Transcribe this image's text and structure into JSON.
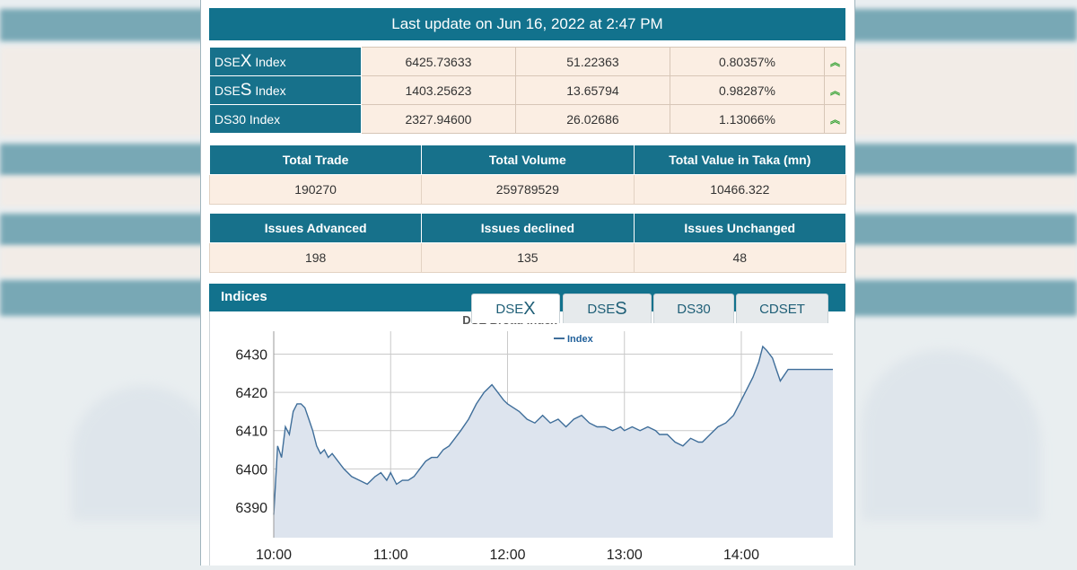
{
  "update": {
    "text": "Last update on Jun 16, 2022 at 2:47 PM"
  },
  "indices": [
    {
      "prefix": "DSE",
      "letter": "X",
      "suffix": " Index",
      "value": "6425.73633",
      "change": "51.22363",
      "percent": "0.80357%",
      "trend_icon": "double-chevron-up-icon"
    },
    {
      "prefix": "DSE",
      "letter": "S",
      "suffix": " Index",
      "value": "1403.25623",
      "change": "13.65794",
      "percent": "0.98287%",
      "trend_icon": "double-chevron-up-icon"
    },
    {
      "prefix": "DS30",
      "letter": "",
      "suffix": " Index",
      "value": "2327.94600",
      "change": "26.02686",
      "percent": "1.13066%",
      "trend_icon": "double-chevron-up-icon"
    }
  ],
  "totals": {
    "headers": [
      "Total Trade",
      "Total Volume",
      "Total Value in Taka (mn)"
    ],
    "values": [
      "190270",
      "259789529",
      "10466.322"
    ]
  },
  "issues": {
    "headers": [
      "Issues Advanced",
      "Issues declined",
      "Issues Unchanged"
    ],
    "values": [
      "198",
      "135",
      "48"
    ]
  },
  "indices_section": {
    "title": "Indices",
    "tabs": [
      {
        "prefix": "DSE",
        "letter": "X"
      },
      {
        "prefix": "DSE",
        "letter": "S"
      },
      {
        "prefix": "DS30",
        "letter": ""
      },
      {
        "prefix": "CDSET",
        "letter": ""
      }
    ],
    "active_tab": 0
  },
  "colors": {
    "header": "#12728d",
    "cell_bg": "#fbeee3",
    "line": "#3f6e9a",
    "area": "#dde4ee",
    "arrow": "#2e9f2e"
  },
  "chart_data": {
    "type": "area",
    "title": "DSE Broad Index",
    "legend": [
      "Index"
    ],
    "legend_position": "top-center",
    "xlabel": "",
    "ylabel": "",
    "x_ticks": [
      "10:00",
      "11:00",
      "12:00",
      "13:00",
      "14:00"
    ],
    "y_ticks": [
      6390,
      6400,
      6410,
      6420,
      6430
    ],
    "ylim": [
      6382,
      6436
    ],
    "grid": true,
    "series": [
      {
        "name": "Index",
        "x": [
          "10:00",
          "10:02",
          "10:04",
          "10:06",
          "10:08",
          "10:10",
          "10:12",
          "10:14",
          "10:16",
          "10:18",
          "10:20",
          "10:22",
          "10:24",
          "10:26",
          "10:28",
          "10:30",
          "10:33",
          "10:36",
          "10:40",
          "10:44",
          "10:48",
          "10:52",
          "10:55",
          "10:58",
          "11:00",
          "11:03",
          "11:06",
          "11:09",
          "11:12",
          "11:15",
          "11:18",
          "11:21",
          "11:24",
          "11:27",
          "11:30",
          "11:33",
          "11:36",
          "11:40",
          "11:44",
          "11:48",
          "11:52",
          "11:55",
          "11:58",
          "12:00",
          "12:03",
          "12:06",
          "12:10",
          "12:14",
          "12:18",
          "12:22",
          "12:26",
          "12:30",
          "12:34",
          "12:38",
          "12:42",
          "12:46",
          "12:50",
          "12:54",
          "12:58",
          "13:00",
          "13:04",
          "13:08",
          "13:12",
          "13:16",
          "13:18",
          "13:22",
          "13:24",
          "13:26",
          "13:30",
          "13:34",
          "13:38",
          "13:40",
          "13:44",
          "13:48",
          "13:52",
          "13:56",
          "14:00",
          "14:03",
          "14:06",
          "14:09",
          "14:11",
          "14:13",
          "14:16",
          "14:18",
          "14:20",
          "14:24",
          "14:28",
          "14:32",
          "14:36",
          "14:40",
          "14:44",
          "14:47"
        ],
        "values": [
          6388,
          6406,
          6403,
          6411,
          6409,
          6415,
          6417,
          6417,
          6416,
          6413,
          6410,
          6406,
          6404,
          6405,
          6403,
          6404,
          6402,
          6400,
          6398,
          6397,
          6396,
          6398,
          6399,
          6397,
          6399,
          6396,
          6397,
          6397,
          6398,
          6400,
          6402,
          6403,
          6403,
          6405,
          6406,
          6408,
          6410,
          6413,
          6417,
          6420,
          6422,
          6420,
          6418,
          6417,
          6416,
          6415,
          6413,
          6412,
          6414,
          6412,
          6413,
          6411,
          6413,
          6414,
          6412,
          6411,
          6411,
          6410,
          6411,
          6410,
          6411,
          6410,
          6411,
          6410,
          6409,
          6409,
          6408,
          6407,
          6406,
          6408,
          6407,
          6407,
          6409,
          6411,
          6412,
          6414,
          6418,
          6421,
          6424,
          6428,
          6432,
          6431,
          6429,
          6426,
          6423,
          6426,
          6426,
          6426,
          6426,
          6426,
          6426,
          6426
        ]
      }
    ]
  }
}
